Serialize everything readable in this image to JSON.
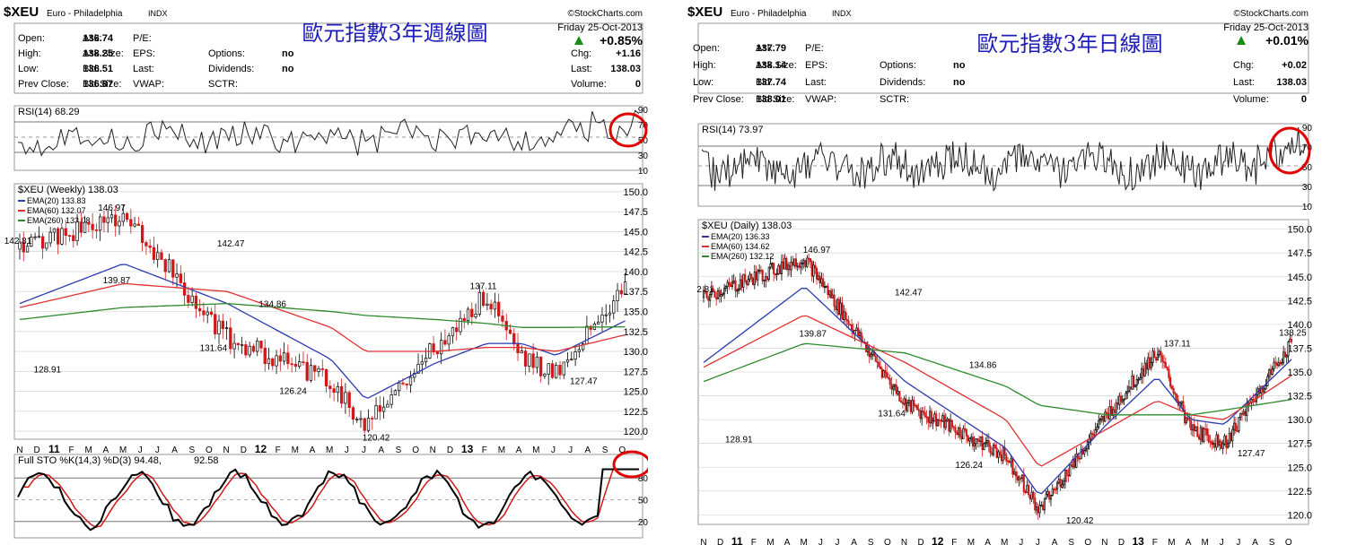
{
  "charts": [
    {
      "symbol": "$XEU",
      "name": "Euro - Philadelphia",
      "exchange": "INDX",
      "source": "©StockCharts.com",
      "annotation": "歐元指數3年週線圖",
      "date": "Friday 25-Oct-2013",
      "change_pct": "+0.85%",
      "quote": {
        "left": [
          [
            "Open:",
            "136.74"
          ],
          [
            "High:",
            "138.25"
          ],
          [
            "Low:",
            "136.51"
          ],
          [
            "Prev Close:",
            "136.87"
          ]
        ],
        "mid": [
          [
            "Ask:",
            ""
          ],
          [
            "Ask Size:",
            ""
          ],
          [
            "Bid:",
            ""
          ],
          [
            "Bid Size:",
            ""
          ]
        ],
        "mid2": [
          [
            "P/E:",
            ""
          ],
          [
            "EPS:",
            ""
          ],
          [
            "Last:",
            ""
          ],
          [
            "VWAP:",
            ""
          ]
        ],
        "mid3": [
          [
            "",
            ""
          ],
          [
            "Options:",
            "no"
          ],
          [
            "Dividends:",
            "no"
          ],
          [
            "SCTR:",
            ""
          ]
        ],
        "right": [
          [
            "Chg:",
            "+1.16"
          ],
          [
            "Last:",
            "138.03"
          ],
          [
            "Volume:",
            "0"
          ]
        ]
      },
      "rsi_label": "RSI(14) 68.29",
      "rsi_ticks": [
        "90",
        "70",
        "50",
        "30",
        "10"
      ],
      "price_label": "$XEU (Weekly) 138.03",
      "ema_labels": [
        {
          "text": "EMA(20) 133.83",
          "color": "#2b3bb0"
        },
        {
          "text": "EMA(60) 132.07",
          "color": "#e03030"
        },
        {
          "text": "EMA(260) 133.08",
          "color": "#2e8b2e"
        }
      ],
      "price_ticks": [
        "150.0",
        "147.5",
        "145.0",
        "142.5",
        "140.0",
        "137.5",
        "135.0",
        "132.5",
        "130.0",
        "127.5",
        "125.0",
        "122.5",
        "120.0"
      ],
      "price_annotations": [
        "142.81",
        "146.97",
        "139.87",
        "142.47",
        "131.64",
        "128.91",
        "126.24",
        "134.86",
        "137.11",
        "127.47",
        "120.42"
      ],
      "sto_label_a": "Full STO %K(14,3) %D(3) 94.48,",
      "sto_label_b": "92.58",
      "sto_ticks": [
        "80",
        "50",
        "20"
      ],
      "x_labels": [
        "N",
        "D",
        "11",
        "F",
        "M",
        "A",
        "M",
        "J",
        "J",
        "A",
        "S",
        "O",
        "N",
        "D",
        "12",
        "F",
        "M",
        "A",
        "M",
        "J",
        "J",
        "A",
        "S",
        "O",
        "N",
        "D",
        "13",
        "F",
        "M",
        "A",
        "M",
        "J",
        "J",
        "A",
        "S",
        "O"
      ]
    },
    {
      "symbol": "$XEU",
      "name": "Euro - Philadelphia",
      "exchange": "INDX",
      "source": "©StockCharts.com",
      "annotation": "歐元指數3年日線圖",
      "date": "Friday 25-Oct-2013",
      "change_pct": "+0.01%",
      "quote": {
        "left": [
          [
            "Open:",
            "137.79"
          ],
          [
            "High:",
            "138.14"
          ],
          [
            "Low:",
            "137.74"
          ],
          [
            "Prev Close:",
            "138.01"
          ]
        ],
        "mid": [
          [
            "Ask:",
            ""
          ],
          [
            "Ask Size:",
            ""
          ],
          [
            "Bid:",
            ""
          ],
          [
            "Bid Size:",
            ""
          ]
        ],
        "mid2": [
          [
            "P/E:",
            ""
          ],
          [
            "EPS:",
            ""
          ],
          [
            "Last:",
            ""
          ],
          [
            "VWAP:",
            ""
          ]
        ],
        "mid3": [
          [
            "",
            ""
          ],
          [
            "Options:",
            "no"
          ],
          [
            "Dividends:",
            "no"
          ],
          [
            "SCTR:",
            ""
          ]
        ],
        "right": [
          [
            "Chg:",
            "+0.02"
          ],
          [
            "Last:",
            "138.03"
          ],
          [
            "Volume:",
            "0"
          ]
        ]
      },
      "rsi_label": "RSI(14) 73.97",
      "rsi_ticks": [
        "90",
        "70",
        "50",
        "30",
        "10"
      ],
      "price_label": "$XEU (Daily) 138.03",
      "ema_labels": [
        {
          "text": "EMA(20) 136.33",
          "color": "#2b3bb0"
        },
        {
          "text": "EMA(60) 134.62",
          "color": "#e03030"
        },
        {
          "text": "EMA(260) 132.12",
          "color": "#2e8b2e"
        }
      ],
      "price_ticks": [
        "150.0",
        "147.5",
        "145.0",
        "142.5",
        "140.0",
        "137.5",
        "135.0",
        "132.5",
        "130.0",
        "127.5",
        "125.0",
        "122.5",
        "120.0"
      ],
      "price_annotations": [
        "2.81",
        "146.97",
        "139.87",
        "142.47",
        "131.64",
        "128.91",
        "126.24",
        "134.86",
        "137.11",
        "127.47",
        "120.42",
        "138.25"
      ],
      "x_labels": [
        "N",
        "D",
        "11",
        "F",
        "M",
        "A",
        "M",
        "J",
        "J",
        "A",
        "S",
        "O",
        "N",
        "D",
        "12",
        "F",
        "M",
        "A",
        "M",
        "J",
        "J",
        "A",
        "S",
        "O",
        "N",
        "D",
        "13",
        "F",
        "M",
        "A",
        "M",
        "J",
        "J",
        "A",
        "S",
        "O"
      ]
    }
  ],
  "colors": {
    "up": "#000000",
    "down": "#d01818",
    "ema20": "#2b3bb0",
    "ema60": "#e03030",
    "ema260": "#2e8b2e",
    "highlight": "#e00000",
    "grid": "#cccccc"
  },
  "chart_data": [
    {
      "type": "line",
      "title": "$XEU (Weekly) 138.03",
      "ylim": [
        119,
        151
      ],
      "x": [
        "2010-11",
        "2011-05",
        "2011-11",
        "2012-05",
        "2012-07",
        "2012-11",
        "2013-02",
        "2013-04",
        "2013-06",
        "2013-10"
      ],
      "series": [
        {
          "name": "$XEU",
          "values": [
            142.81,
            146.97,
            131.64,
            126.24,
            120.42,
            130.5,
            137.11,
            129.0,
            127.47,
            138.03
          ]
        },
        {
          "name": "EMA(20)",
          "values": [
            136.0,
            141.0,
            136.0,
            129.0,
            124.0,
            128.5,
            131.0,
            131.0,
            129.5,
            133.83
          ]
        },
        {
          "name": "EMA(60)",
          "values": [
            135.5,
            138.5,
            137.5,
            133.0,
            130.0,
            130.0,
            130.5,
            130.5,
            130.0,
            132.07
          ]
        },
        {
          "name": "EMA(260)",
          "values": [
            134.0,
            135.5,
            136.0,
            135.0,
            134.5,
            134.0,
            133.5,
            133.0,
            133.0,
            133.08
          ]
        }
      ]
    },
    {
      "type": "line",
      "title": "$XEU (Daily) 138.03",
      "ylim": [
        119,
        151
      ],
      "x": [
        "2010-11",
        "2011-05",
        "2011-11",
        "2012-05",
        "2012-07",
        "2012-11",
        "2013-02",
        "2013-04",
        "2013-06",
        "2013-10"
      ],
      "series": [
        {
          "name": "$XEU",
          "values": [
            142.81,
            146.97,
            131.64,
            126.24,
            120.42,
            130.5,
            137.11,
            129.0,
            127.47,
            138.25
          ]
        },
        {
          "name": "EMA(20)",
          "values": [
            136.0,
            144.0,
            134.0,
            127.0,
            122.0,
            129.5,
            134.5,
            130.0,
            129.5,
            136.33
          ]
        },
        {
          "name": "EMA(60)",
          "values": [
            135.5,
            141.0,
            136.0,
            130.0,
            125.0,
            129.0,
            132.0,
            130.5,
            130.0,
            134.62
          ]
        },
        {
          "name": "EMA(260)",
          "values": [
            134.0,
            138.0,
            137.0,
            133.5,
            131.5,
            130.5,
            130.5,
            130.5,
            131.0,
            132.12
          ]
        }
      ]
    }
  ]
}
